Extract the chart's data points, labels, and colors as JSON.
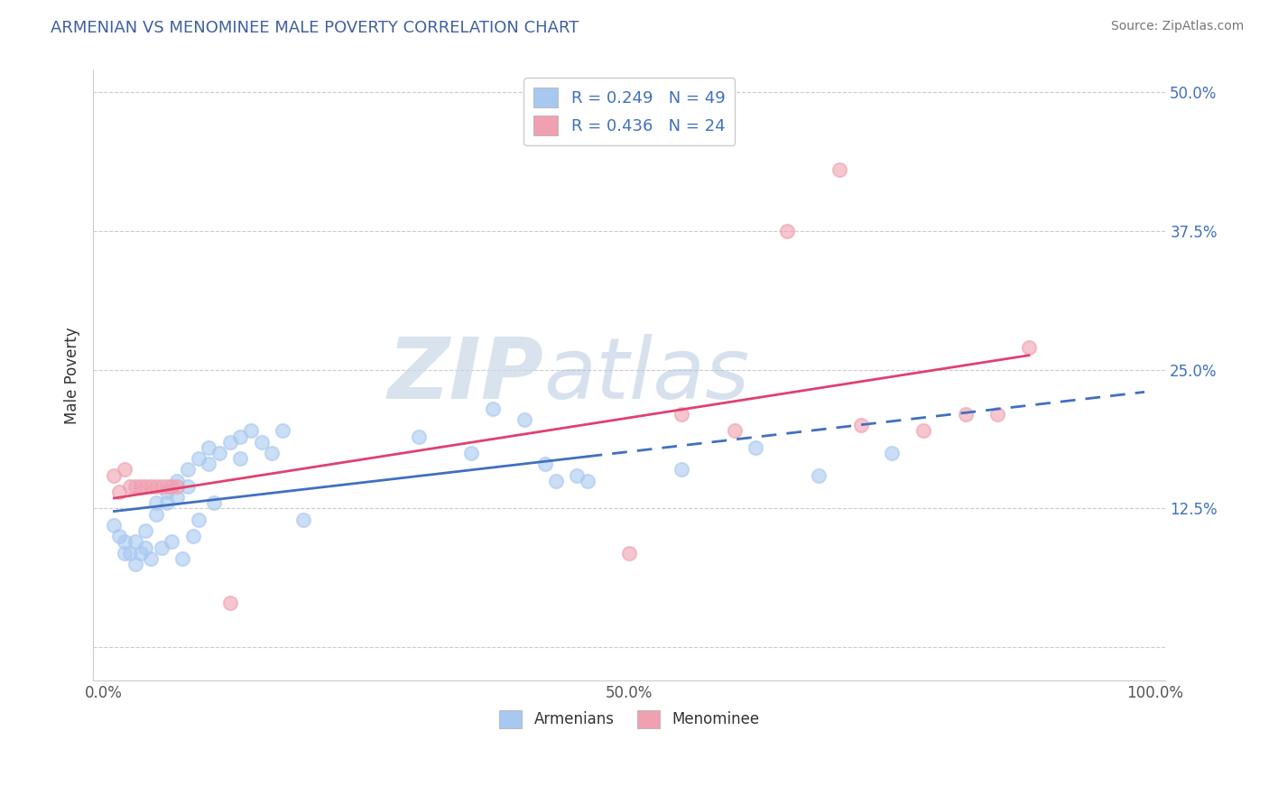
{
  "title": "ARMENIAN VS MENOMINEE MALE POVERTY CORRELATION CHART",
  "source_text": "Source: ZipAtlas.com",
  "ylabel": "Male Poverty",
  "xlim": [
    -0.01,
    1.01
  ],
  "ylim": [
    -0.03,
    0.52
  ],
  "xticks": [
    0.0,
    0.25,
    0.5,
    0.75,
    1.0
  ],
  "xtick_labels": [
    "0.0%",
    "",
    "50.0%",
    "",
    "100.0%"
  ],
  "yticks": [
    0.0,
    0.125,
    0.25,
    0.375,
    0.5
  ],
  "ytick_labels": [
    "",
    "12.5%",
    "25.0%",
    "37.5%",
    "50.0%"
  ],
  "legend_r1": "R = 0.249   N = 49",
  "legend_r2": "R = 0.436   N = 24",
  "color_armenian": "#a8c8f0",
  "color_menominee": "#f0a0b0",
  "color_line_armenian": "#4070c0",
  "color_line_menominee": "#e04070",
  "watermark_zip": "ZIP",
  "watermark_atlas": "atlas",
  "background_color": "#ffffff",
  "grid_color": "#cccccc",
  "arm_x": [
    0.01,
    0.015,
    0.02,
    0.02,
    0.025,
    0.03,
    0.03,
    0.035,
    0.04,
    0.04,
    0.045,
    0.05,
    0.05,
    0.055,
    0.06,
    0.06,
    0.065,
    0.07,
    0.07,
    0.075,
    0.08,
    0.08,
    0.085,
    0.09,
    0.09,
    0.1,
    0.1,
    0.105,
    0.11,
    0.12,
    0.13,
    0.13,
    0.14,
    0.15,
    0.16,
    0.17,
    0.19,
    0.3,
    0.35,
    0.37,
    0.4,
    0.42,
    0.43,
    0.45,
    0.46,
    0.55,
    0.62,
    0.68,
    0.75
  ],
  "arm_y": [
    0.11,
    0.1,
    0.085,
    0.095,
    0.085,
    0.095,
    0.075,
    0.085,
    0.105,
    0.09,
    0.08,
    0.13,
    0.12,
    0.09,
    0.14,
    0.13,
    0.095,
    0.15,
    0.135,
    0.08,
    0.16,
    0.145,
    0.1,
    0.17,
    0.115,
    0.18,
    0.165,
    0.13,
    0.175,
    0.185,
    0.19,
    0.17,
    0.195,
    0.185,
    0.175,
    0.195,
    0.115,
    0.19,
    0.175,
    0.215,
    0.205,
    0.165,
    0.15,
    0.155,
    0.15,
    0.16,
    0.18,
    0.155,
    0.175
  ],
  "men_x": [
    0.01,
    0.015,
    0.02,
    0.025,
    0.03,
    0.035,
    0.04,
    0.045,
    0.05,
    0.055,
    0.06,
    0.065,
    0.07,
    0.12,
    0.5,
    0.55,
    0.6,
    0.65,
    0.7,
    0.72,
    0.78,
    0.82,
    0.85,
    0.88
  ],
  "men_y": [
    0.155,
    0.14,
    0.16,
    0.145,
    0.145,
    0.145,
    0.145,
    0.145,
    0.145,
    0.145,
    0.145,
    0.145,
    0.145,
    0.04,
    0.085,
    0.21,
    0.195,
    0.375,
    0.43,
    0.2,
    0.195,
    0.21,
    0.21,
    0.27
  ]
}
